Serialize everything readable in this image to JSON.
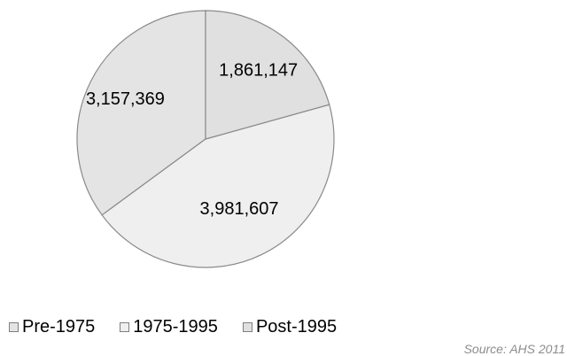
{
  "chart_data": {
    "type": "pie",
    "categories": [
      "Pre-1975",
      "1975-1995",
      "Post-1995"
    ],
    "values": [
      3157369,
      3981607,
      1861147
    ],
    "data_labels": [
      "3,157,369",
      "3,981,607",
      "1,861,147"
    ],
    "colors": [
      "#e4e4e4",
      "#efefef",
      "#e0e0e0"
    ],
    "start_angle_deg": 0,
    "direction": "counterclockwise-from-top",
    "legend": {
      "placement": "bottom-left",
      "items": [
        {
          "label": "Pre-1975",
          "color": "#e4e4e4"
        },
        {
          "label": "1975-1995",
          "color": "#efefef"
        },
        {
          "label": "Post-1995",
          "color": "#e0e0e0"
        }
      ]
    },
    "source": "Source: AHS 2011"
  }
}
